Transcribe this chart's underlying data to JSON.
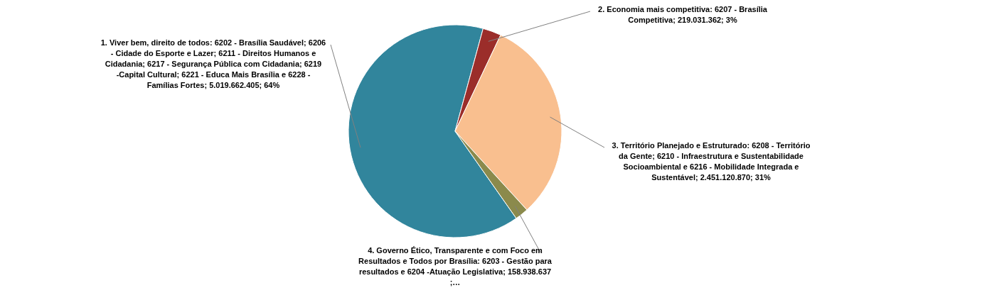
{
  "chart_data": {
    "type": "pie",
    "categories": [
      "1. Viver bem, direito de todos: 6202 - Brasília Saudável; 6206 - Cidade do Esporte e Lazer; 6211 - Direitos Humanos e Cidadania; 6217 - Segurança Pública com Cidadania; 6219 -Capital Cultural; 6221 - Educa Mais Brasília e 6228 - Famílias Fortes",
      "2. Economia mais competitiva: 6207 - Brasília Competitiva",
      "3. Território Planejado e Estruturado: 6208 - Território da Gente; 6210 - Infraestrutura e Sustentabilidade Socioambiental e 6216 - Mobilidade Integrada e Sustentável",
      "4. Governo Ético, Transparente e com Foco em Resultados e Todos por Brasília: 6203 - Gestão para resultados e 6204 -Atuação Legislativa"
    ],
    "values": [
      5019662405,
      219031362,
      2451120870,
      158938637
    ],
    "value_labels": [
      "5.019.662.405; 64%",
      "219.031.362; 3%",
      "2.451.120.870; 31%",
      "158.938.637 ;…"
    ],
    "colors": [
      "#31859c",
      "#9b2d2a",
      "#f9bf8f",
      "#8b8a4c"
    ],
    "legend": false
  }
}
